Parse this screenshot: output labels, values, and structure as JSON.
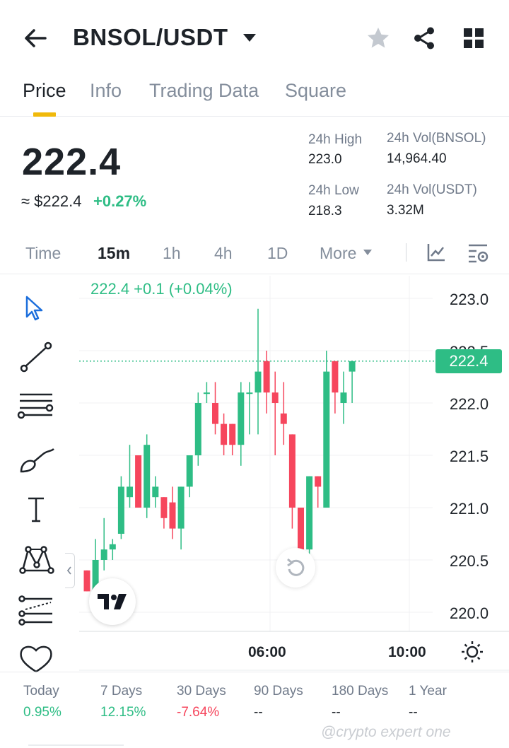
{
  "header": {
    "pair": "BNSOL/USDT"
  },
  "tabs": [
    {
      "label": "Price",
      "active": true
    },
    {
      "label": "Info",
      "active": false
    },
    {
      "label": "Trading Data",
      "active": false
    },
    {
      "label": "Square",
      "active": false
    }
  ],
  "ticker": {
    "last_price": "222.4",
    "usd_price": "≈ $222.4",
    "change_pct": "+0.27%",
    "high_label": "24h High",
    "high_value": "223.0",
    "low_label": "24h Low",
    "low_value": "218.3",
    "vol_base_label": "24h Vol(BNSOL)",
    "vol_base_value": "14,964.40",
    "vol_quote_label": "24h Vol(USDT)",
    "vol_quote_value": "3.32M"
  },
  "intervals": [
    {
      "label": "Time",
      "active": false
    },
    {
      "label": "15m",
      "active": true
    },
    {
      "label": "1h",
      "active": false
    },
    {
      "label": "4h",
      "active": false
    },
    {
      "label": "1D",
      "active": false
    },
    {
      "label": "More",
      "active": false
    }
  ],
  "chart_legend": "222.4  +0.1 (+0.04%)",
  "chart_data": {
    "type": "candlestick",
    "current_price": 222.4,
    "current_price_label": "222.4",
    "ylim": [
      219.8,
      223.1
    ],
    "y_ticks": [
      "223.0",
      "222.5",
      "222.0",
      "221.5",
      "221.0",
      "220.5",
      "220.0"
    ],
    "x_ticks": [
      "06:00",
      "10:00"
    ],
    "colors": {
      "up": "#2ebd85",
      "down": "#f6465d"
    },
    "candles": [
      {
        "o": 220.4,
        "h": 220.4,
        "l": 220.2,
        "c": 220.2
      },
      {
        "o": 220.1,
        "h": 220.7,
        "l": 220.1,
        "c": 220.5
      },
      {
        "o": 220.5,
        "h": 220.9,
        "l": 220.4,
        "c": 220.6
      },
      {
        "o": 220.6,
        "h": 220.7,
        "l": 220.5,
        "c": 220.65
      },
      {
        "o": 220.75,
        "h": 221.3,
        "l": 220.7,
        "c": 221.2
      },
      {
        "o": 221.1,
        "h": 221.6,
        "l": 221.0,
        "c": 221.2
      },
      {
        "o": 221.5,
        "h": 221.5,
        "l": 221.0,
        "c": 221.0
      },
      {
        "o": 221.0,
        "h": 221.7,
        "l": 220.9,
        "c": 221.6
      },
      {
        "o": 221.1,
        "h": 221.3,
        "l": 221.0,
        "c": 221.2
      },
      {
        "o": 221.1,
        "h": 221.1,
        "l": 220.8,
        "c": 220.9
      },
      {
        "o": 221.05,
        "h": 221.2,
        "l": 220.7,
        "c": 220.8
      },
      {
        "o": 220.8,
        "h": 221.2,
        "l": 220.6,
        "c": 221.2
      },
      {
        "o": 221.2,
        "h": 221.5,
        "l": 221.1,
        "c": 221.5
      },
      {
        "o": 221.5,
        "h": 222.1,
        "l": 221.4,
        "c": 222.0
      },
      {
        "o": 222.1,
        "h": 222.2,
        "l": 222.0,
        "c": 222.1
      },
      {
        "o": 222.0,
        "h": 222.2,
        "l": 221.7,
        "c": 221.8
      },
      {
        "o": 221.8,
        "h": 221.9,
        "l": 221.5,
        "c": 221.6
      },
      {
        "o": 221.8,
        "h": 221.8,
        "l": 221.5,
        "c": 221.6
      },
      {
        "o": 221.6,
        "h": 222.2,
        "l": 221.4,
        "c": 222.1
      },
      {
        "o": 222.1,
        "h": 222.2,
        "l": 221.7,
        "c": 222.1
      },
      {
        "o": 222.1,
        "h": 222.9,
        "l": 221.7,
        "c": 222.3
      },
      {
        "o": 222.4,
        "h": 222.5,
        "l": 221.9,
        "c": 222.1
      },
      {
        "o": 222.1,
        "h": 222.3,
        "l": 221.5,
        "c": 222.0
      },
      {
        "o": 221.9,
        "h": 222.2,
        "l": 221.6,
        "c": 221.8
      },
      {
        "o": 221.7,
        "h": 221.7,
        "l": 220.8,
        "c": 221.0
      },
      {
        "o": 221.0,
        "h": 221.0,
        "l": 220.5,
        "c": 220.6
      },
      {
        "o": 220.6,
        "h": 221.3,
        "l": 220.5,
        "c": 221.3
      },
      {
        "o": 221.3,
        "h": 221.3,
        "l": 221.0,
        "c": 221.2
      },
      {
        "o": 221.0,
        "h": 222.5,
        "l": 221.0,
        "c": 222.3
      },
      {
        "o": 222.4,
        "h": 222.4,
        "l": 221.9,
        "c": 222.1
      },
      {
        "o": 222.0,
        "h": 222.3,
        "l": 221.8,
        "c": 222.1
      },
      {
        "o": 222.3,
        "h": 222.4,
        "l": 222.0,
        "c": 222.4
      }
    ]
  },
  "performance": [
    {
      "label": "Today",
      "value": "0.95%",
      "trend": "pos"
    },
    {
      "label": "7 Days",
      "value": "12.15%",
      "trend": "pos"
    },
    {
      "label": "30 Days",
      "value": "-7.64%",
      "trend": "neg"
    },
    {
      "label": "90 Days",
      "value": "--",
      "trend": "flat"
    },
    {
      "label": "180 Days",
      "value": "--",
      "trend": "flat"
    },
    {
      "label": "1 Year",
      "value": "--",
      "trend": "flat"
    }
  ],
  "watermark": "@crypto expert one"
}
